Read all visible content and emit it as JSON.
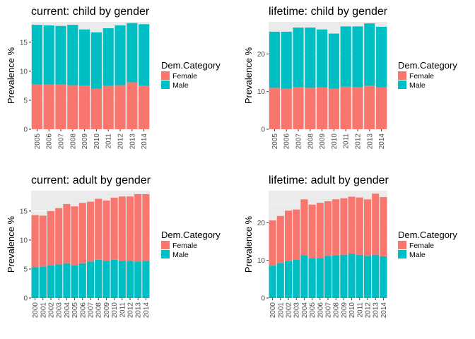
{
  "colors": {
    "panel_bg": "#ebebeb",
    "grid_major": "#ffffff",
    "grid_minor": "#f2f2f2",
    "text": "#000000",
    "tick_text": "#4d4d4d"
  },
  "chart_data": [
    {
      "type": "bar",
      "stacked": true,
      "title": "current: child by gender",
      "xlabel": "",
      "ylabel": "Prevalence %",
      "ylim": [
        0,
        18.5
      ],
      "yticks": [
        0,
        5,
        10,
        15
      ],
      "grid": true,
      "legend": {
        "title": "Dem.Category",
        "position": "right",
        "entries": [
          "Female",
          "Male"
        ]
      },
      "categories": [
        "2005",
        "2006",
        "2007",
        "2008",
        "2009",
        "2010",
        "2011",
        "2012",
        "2013",
        "2014"
      ],
      "series": [
        {
          "name": "Female",
          "color": "#F8766D",
          "values": [
            7.7,
            7.7,
            7.7,
            7.6,
            7.5,
            7.0,
            7.5,
            7.6,
            8.1,
            7.5
          ]
        },
        {
          "name": "Male",
          "color": "#00BFC4",
          "values": [
            10.3,
            10.2,
            10.1,
            10.4,
            9.7,
            9.7,
            9.9,
            10.3,
            10.2,
            10.6
          ]
        }
      ]
    },
    {
      "type": "bar",
      "stacked": true,
      "title": "lifetime: child by gender",
      "xlabel": "",
      "ylabel": "Prevalence %",
      "ylim": [
        0,
        28.5
      ],
      "yticks": [
        0,
        10,
        20
      ],
      "grid": true,
      "legend": {
        "title": "Dem.Category",
        "position": "right",
        "entries": [
          "Female",
          "Male"
        ]
      },
      "categories": [
        "2005",
        "2006",
        "2007",
        "2008",
        "2009",
        "2010",
        "2011",
        "2012",
        "2013",
        "2014"
      ],
      "series": [
        {
          "name": "Female",
          "color": "#F8766D",
          "values": [
            11.0,
            10.8,
            11.2,
            11.0,
            11.1,
            10.8,
            11.3,
            11.2,
            11.6,
            11.1
          ]
        },
        {
          "name": "Male",
          "color": "#00BFC4",
          "values": [
            14.9,
            15.1,
            15.8,
            16.0,
            15.4,
            14.6,
            16.0,
            16.1,
            16.5,
            16.1
          ]
        }
      ]
    },
    {
      "type": "bar",
      "stacked": true,
      "title": "current: adult by gender",
      "xlabel": "",
      "ylabel": "Prevalence %",
      "ylim": [
        0,
        18.5
      ],
      "yticks": [
        0,
        5,
        10,
        15
      ],
      "grid": true,
      "legend": {
        "title": "Dem.Category",
        "position": "right",
        "entries": [
          "Female",
          "Male"
        ]
      },
      "categories": [
        "2000",
        "2001",
        "2002",
        "2003",
        "2004",
        "2005",
        "2006",
        "2007",
        "2008",
        "2009",
        "2010",
        "2011",
        "2012",
        "2013",
        "2014"
      ],
      "series": [
        {
          "name": "Male",
          "color": "#00BFC4",
          "values": [
            5.3,
            5.4,
            5.6,
            5.8,
            6.0,
            5.6,
            6.0,
            6.3,
            6.6,
            6.4,
            6.6,
            6.4,
            6.4,
            6.3,
            6.4
          ]
        },
        {
          "name": "Female",
          "color": "#F8766D",
          "values": [
            9.0,
            8.8,
            9.4,
            9.7,
            10.2,
            10.2,
            10.4,
            10.3,
            10.5,
            10.4,
            10.7,
            11.1,
            11.1,
            11.6,
            11.5
          ]
        }
      ]
    },
    {
      "type": "bar",
      "stacked": true,
      "title": "lifetime: adult by gender",
      "xlabel": "",
      "ylabel": "Prevalence %",
      "ylim": [
        0,
        28.5
      ],
      "yticks": [
        0,
        10,
        20
      ],
      "grid": true,
      "legend": {
        "title": "Dem.Category",
        "position": "right",
        "entries": [
          "Female",
          "Male"
        ]
      },
      "categories": [
        "2000",
        "2001",
        "2002",
        "2003",
        "2004",
        "2005",
        "2006",
        "2007",
        "2008",
        "2009",
        "2010",
        "2011",
        "2012",
        "2013",
        "2014"
      ],
      "series": [
        {
          "name": "Male",
          "color": "#00BFC4",
          "values": [
            8.6,
            9.3,
            9.8,
            10.2,
            11.4,
            10.5,
            10.6,
            11.2,
            11.4,
            11.5,
            11.8,
            11.5,
            11.2,
            11.5,
            11.1
          ]
        },
        {
          "name": "Female",
          "color": "#F8766D",
          "values": [
            12.0,
            12.5,
            13.4,
            13.3,
            14.8,
            14.3,
            14.7,
            14.5,
            14.8,
            15.0,
            15.1,
            15.2,
            15.0,
            16.2,
            15.7
          ]
        }
      ]
    }
  ]
}
